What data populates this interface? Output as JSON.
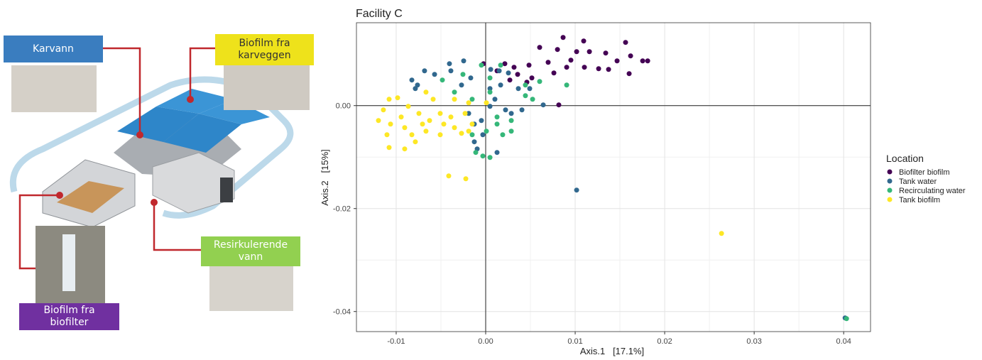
{
  "diagram": {
    "labels": [
      "Karvann",
      "Biofilm fra karveggen",
      "Resirkulerende vann",
      "Biofilm fra biofilter"
    ]
  },
  "chart_data": {
    "type": "scatter",
    "title": "Facility C",
    "x_label": "Axis.1   [17.1%]",
    "y_label": "Axis.2   [15%]",
    "xlim": [
      -0.01444,
      0.043
    ],
    "ylim": [
      -0.0439,
      0.0161
    ],
    "xticks": [
      -0.01,
      {
        "value": 0,
        "label": "0.00"
      },
      0.01,
      0.02,
      0.03,
      0.04
    ],
    "yticks": [
      {
        "value": 0,
        "label": "0.00"
      },
      -0.02,
      -0.04
    ],
    "grid": true,
    "zero_lines": true,
    "legend_title": "Location",
    "legend_position": "right",
    "series": [
      {
        "name": "Biofilter biofilm",
        "color": "#440154",
        "x": [
          0.00865,
          0.01095,
          0.01563,
          0.00603,
          0.00802,
          0.01016,
          0.01159,
          0.01341,
          0.01619,
          0.01754,
          0.0181,
          0.01468,
          0.00952,
          0.00698,
          0.00484,
          0.00317,
          0.00905,
          0.01103,
          0.01262,
          0.01373,
          0.01603,
          0.00762,
          0.00357,
          0.00516,
          0.00214,
          0.00127,
          -0.00024,
          0.00817,
          0.0046,
          0.0027
        ],
        "y": [
          0.01324,
          0.01255,
          0.01228,
          0.01131,
          0.0109,
          0.01048,
          0.01048,
          0.01021,
          0.00966,
          0.00869,
          0.00869,
          0.00869,
          0.00883,
          0.00841,
          0.00786,
          0.00745,
          0.00745,
          0.00745,
          0.00717,
          0.00703,
          0.00621,
          0.00634,
          0.00607,
          0.00538,
          0.00814,
          0.00676,
          0.00814,
          0.00014,
          0.00455,
          0.00497
        ]
      },
      {
        "name": "Tank water",
        "color": "#31688e",
        "x": [
          -0.00825,
          -0.00683,
          -0.00405,
          -0.00246,
          -0.00389,
          -0.00571,
          -0.00762,
          -0.0027,
          -0.00167,
          0.00056,
          0.00151,
          0.00254,
          0.00048,
          0.00103,
          0.00222,
          -0.00127,
          -0.00032,
          0.00127,
          -0.00127,
          0.00286,
          0.00405,
          0.00643,
          -0.00048,
          -0.0019,
          -0.00786,
          0.00167,
          0.00365,
          0.00048,
          0.00492,
          -0.00095,
          0.01016,
          0.04016
        ],
        "y": [
          0.00497,
          0.00676,
          0.00814,
          0.00869,
          0.00676,
          0.00607,
          0.004,
          0.004,
          0.00538,
          0.00703,
          0.00676,
          0.00634,
          0.00331,
          0.00124,
          -0.00083,
          -0.00359,
          -0.00566,
          -0.0091,
          -0.00703,
          -0.00152,
          -0.00083,
          0.00014,
          -0.0029,
          -0.00152,
          0.00331,
          0.004,
          0.00331,
          -0.00014,
          0.00331,
          -0.00841,
          -0.01641,
          -0.04124
        ]
      },
      {
        "name": "Recirculating water",
        "color": "#35b779",
        "x": [
          -0.00048,
          0.00167,
          -0.00484,
          -0.00349,
          -0.00151,
          0.00048,
          0.00127,
          8e-05,
          0.00127,
          0.00286,
          0.00444,
          0.00603,
          0.00905,
          -0.00032,
          0.00048,
          -0.00111,
          0.00048,
          0.00286,
          0.04032,
          -0.00254,
          -0.00151,
          0.0019,
          0.00524,
          0.00444
        ],
        "y": [
          0.00786,
          0.00786,
          0.00497,
          0.00262,
          0.00124,
          0.00262,
          -0.00221,
          -0.00497,
          -0.00359,
          -0.00497,
          0.004,
          0.00469,
          0.004,
          -0.00979,
          -0.01007,
          -0.0091,
          0.00538,
          -0.0029,
          -0.04138,
          0.00607,
          -0.00566,
          -0.00566,
          0.00124,
          0.00193
        ]
      },
      {
        "name": "Tank biofilm",
        "color": "#fde725",
        "x": [
          -0.01079,
          -0.00984,
          -0.01143,
          -0.01198,
          -0.01063,
          -0.00944,
          -0.00865,
          -0.00746,
          -0.00627,
          -0.00508,
          -0.00389,
          -0.0023,
          -0.00151,
          -0.01103,
          -0.01079,
          -0.00905,
          -0.00786,
          -0.00667,
          -0.00508,
          -0.00349,
          -0.0019,
          -0.00587,
          -0.00667,
          -0.00349,
          -0.0019,
          -0.00905,
          -0.00706,
          -0.00825,
          -0.00468,
          -0.0027,
          8e-05,
          -0.00413,
          -0.00222,
          0.02635
        ],
        "y": [
          0.00124,
          0.00152,
          -0.00083,
          -0.0029,
          -0.00359,
          -0.00221,
          -0.00014,
          -0.00152,
          -0.0029,
          -0.00152,
          -0.00221,
          -0.00152,
          -0.00359,
          -0.00566,
          -0.00814,
          -0.00841,
          -0.00703,
          -0.00497,
          -0.00566,
          -0.00428,
          -0.00497,
          0.00124,
          0.00262,
          0.00124,
          0.00055,
          -0.00428,
          -0.00359,
          -0.00566,
          -0.00359,
          -0.00538,
          0.00055,
          -0.01366,
          -0.01421,
          -0.02483
        ]
      }
    ]
  }
}
